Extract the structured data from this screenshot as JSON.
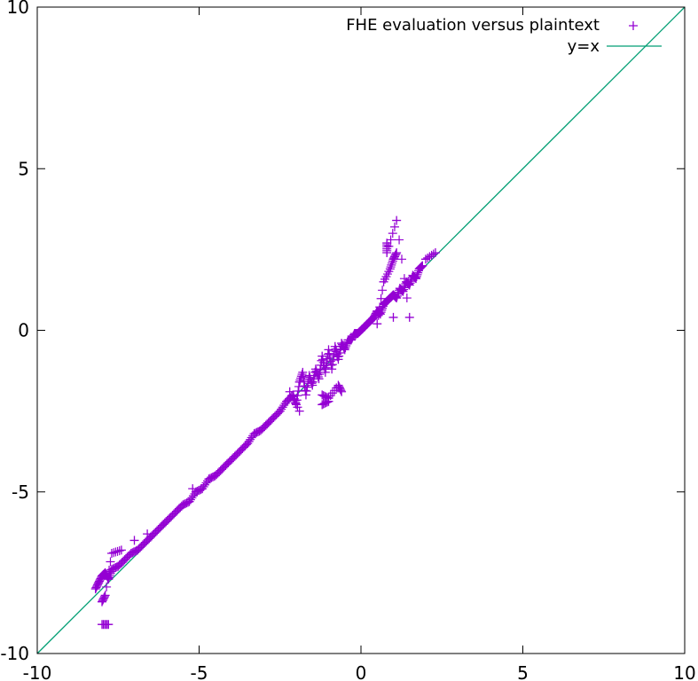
{
  "chart_data": {
    "type": "scatter",
    "title": "",
    "xlabel": "",
    "ylabel": "",
    "xlim": [
      -10,
      10
    ],
    "ylim": [
      -10,
      10
    ],
    "x_ticks": [
      -10,
      -5,
      0,
      5,
      10
    ],
    "y_ticks": [
      -10,
      -5,
      0,
      5,
      10
    ],
    "x_tick_labels": [
      "-10",
      "-5",
      "0",
      "5",
      "10"
    ],
    "y_tick_labels": [
      "-10",
      "-5",
      "0",
      "5",
      "10"
    ],
    "grid": false,
    "legend_position": "top-right",
    "colors": {
      "scatter": "#9400d3",
      "line": "#009e73",
      "axes": "#000000"
    },
    "series": [
      {
        "name": "FHE evaluation versus plaintext",
        "kind": "scatter",
        "marker": "plus",
        "points": [
          [
            -8.2,
            -8.0
          ],
          [
            -8.1,
            -7.8
          ],
          [
            -8.0,
            -7.6
          ],
          [
            -7.9,
            -7.5
          ],
          [
            -7.8,
            -7.7
          ],
          [
            -7.7,
            -7.4
          ],
          [
            -7.5,
            -7.3
          ],
          [
            -7.3,
            -7.1
          ],
          [
            -7.1,
            -6.9
          ],
          [
            -6.9,
            -6.8
          ],
          [
            -6.7,
            -6.6
          ],
          [
            -6.5,
            -6.4
          ],
          [
            -6.3,
            -6.2
          ],
          [
            -6.1,
            -6.0
          ],
          [
            -5.9,
            -5.8
          ],
          [
            -5.7,
            -5.6
          ],
          [
            -5.5,
            -5.4
          ],
          [
            -5.3,
            -5.3
          ],
          [
            -5.1,
            -5.0
          ],
          [
            -4.9,
            -4.9
          ],
          [
            -4.7,
            -4.6
          ],
          [
            -4.5,
            -4.5
          ],
          [
            -4.3,
            -4.3
          ],
          [
            -4.1,
            -4.1
          ],
          [
            -3.9,
            -3.9
          ],
          [
            -3.7,
            -3.7
          ],
          [
            -3.5,
            -3.5
          ],
          [
            -3.3,
            -3.2
          ],
          [
            -3.1,
            -3.1
          ],
          [
            -2.9,
            -2.9
          ],
          [
            -2.7,
            -2.7
          ],
          [
            -2.5,
            -2.5
          ],
          [
            -2.3,
            -2.2
          ],
          [
            -2.1,
            -2.0
          ],
          [
            -2.0,
            -2.3
          ],
          [
            -1.9,
            -1.6
          ],
          [
            -1.8,
            -1.3
          ],
          [
            -1.7,
            -2.0
          ],
          [
            -1.6,
            -1.4
          ],
          [
            -1.5,
            -1.7
          ],
          [
            -1.4,
            -1.2
          ],
          [
            -1.3,
            -1.5
          ],
          [
            -1.2,
            -0.8
          ],
          [
            -1.1,
            -1.3
          ],
          [
            -1.0,
            -0.6
          ],
          [
            -0.9,
            -1.2
          ],
          [
            -0.8,
            -0.5
          ],
          [
            -0.7,
            -0.9
          ],
          [
            -0.6,
            -0.4
          ],
          [
            -0.5,
            -0.6
          ],
          [
            -0.4,
            -0.3
          ],
          [
            -0.3,
            -0.3
          ],
          [
            -0.2,
            -0.1
          ],
          [
            -0.1,
            -0.1
          ],
          [
            0.0,
            0.0
          ],
          [
            0.1,
            0.1
          ],
          [
            0.2,
            0.2
          ],
          [
            0.3,
            0.3
          ],
          [
            0.4,
            0.4
          ],
          [
            0.5,
            0.6
          ],
          [
            0.6,
            0.5
          ],
          [
            0.7,
            0.8
          ],
          [
            0.8,
            0.9
          ],
          [
            0.9,
            1.0
          ],
          [
            1.0,
            1.1
          ],
          [
            1.1,
            1.0
          ],
          [
            1.2,
            1.3
          ],
          [
            1.3,
            1.2
          ],
          [
            1.4,
            1.5
          ],
          [
            1.5,
            1.4
          ],
          [
            1.6,
            1.7
          ],
          [
            1.7,
            1.6
          ],
          [
            1.8,
            1.9
          ],
          [
            1.9,
            2.0
          ],
          [
            -8.0,
            -8.4
          ],
          [
            -7.9,
            -8.2
          ],
          [
            -7.7,
            -6.9
          ],
          [
            -7.4,
            -6.8
          ],
          [
            -7.0,
            -6.5
          ],
          [
            -6.6,
            -6.3
          ],
          [
            -5.2,
            -4.9
          ],
          [
            -2.2,
            -1.9
          ],
          [
            -1.9,
            -2.5
          ],
          [
            -1.2,
            -2.0
          ],
          [
            -1.0,
            -2.1
          ],
          [
            -0.7,
            -1.7
          ],
          [
            -0.6,
            -1.9
          ],
          [
            0.5,
            0.2
          ],
          [
            0.7,
            1.5
          ],
          [
            0.9,
            1.9
          ],
          [
            1.0,
            2.2
          ],
          [
            1.1,
            2.4
          ],
          [
            -8.0,
            -9.1
          ],
          [
            -7.8,
            -9.1
          ],
          [
            -1.2,
            -2.3
          ],
          [
            -1.0,
            -2.2
          ],
          [
            0.8,
            2.7
          ],
          [
            0.8,
            2.4
          ],
          [
            1.1,
            3.4
          ],
          [
            1.5,
            0.4
          ],
          [
            1.0,
            0.4
          ],
          [
            2.0,
            2.2
          ],
          [
            2.3,
            2.4
          ]
        ]
      },
      {
        "name": "y=x",
        "kind": "line",
        "points": [
          [
            -10,
            -10
          ],
          [
            10,
            10
          ]
        ]
      }
    ]
  }
}
